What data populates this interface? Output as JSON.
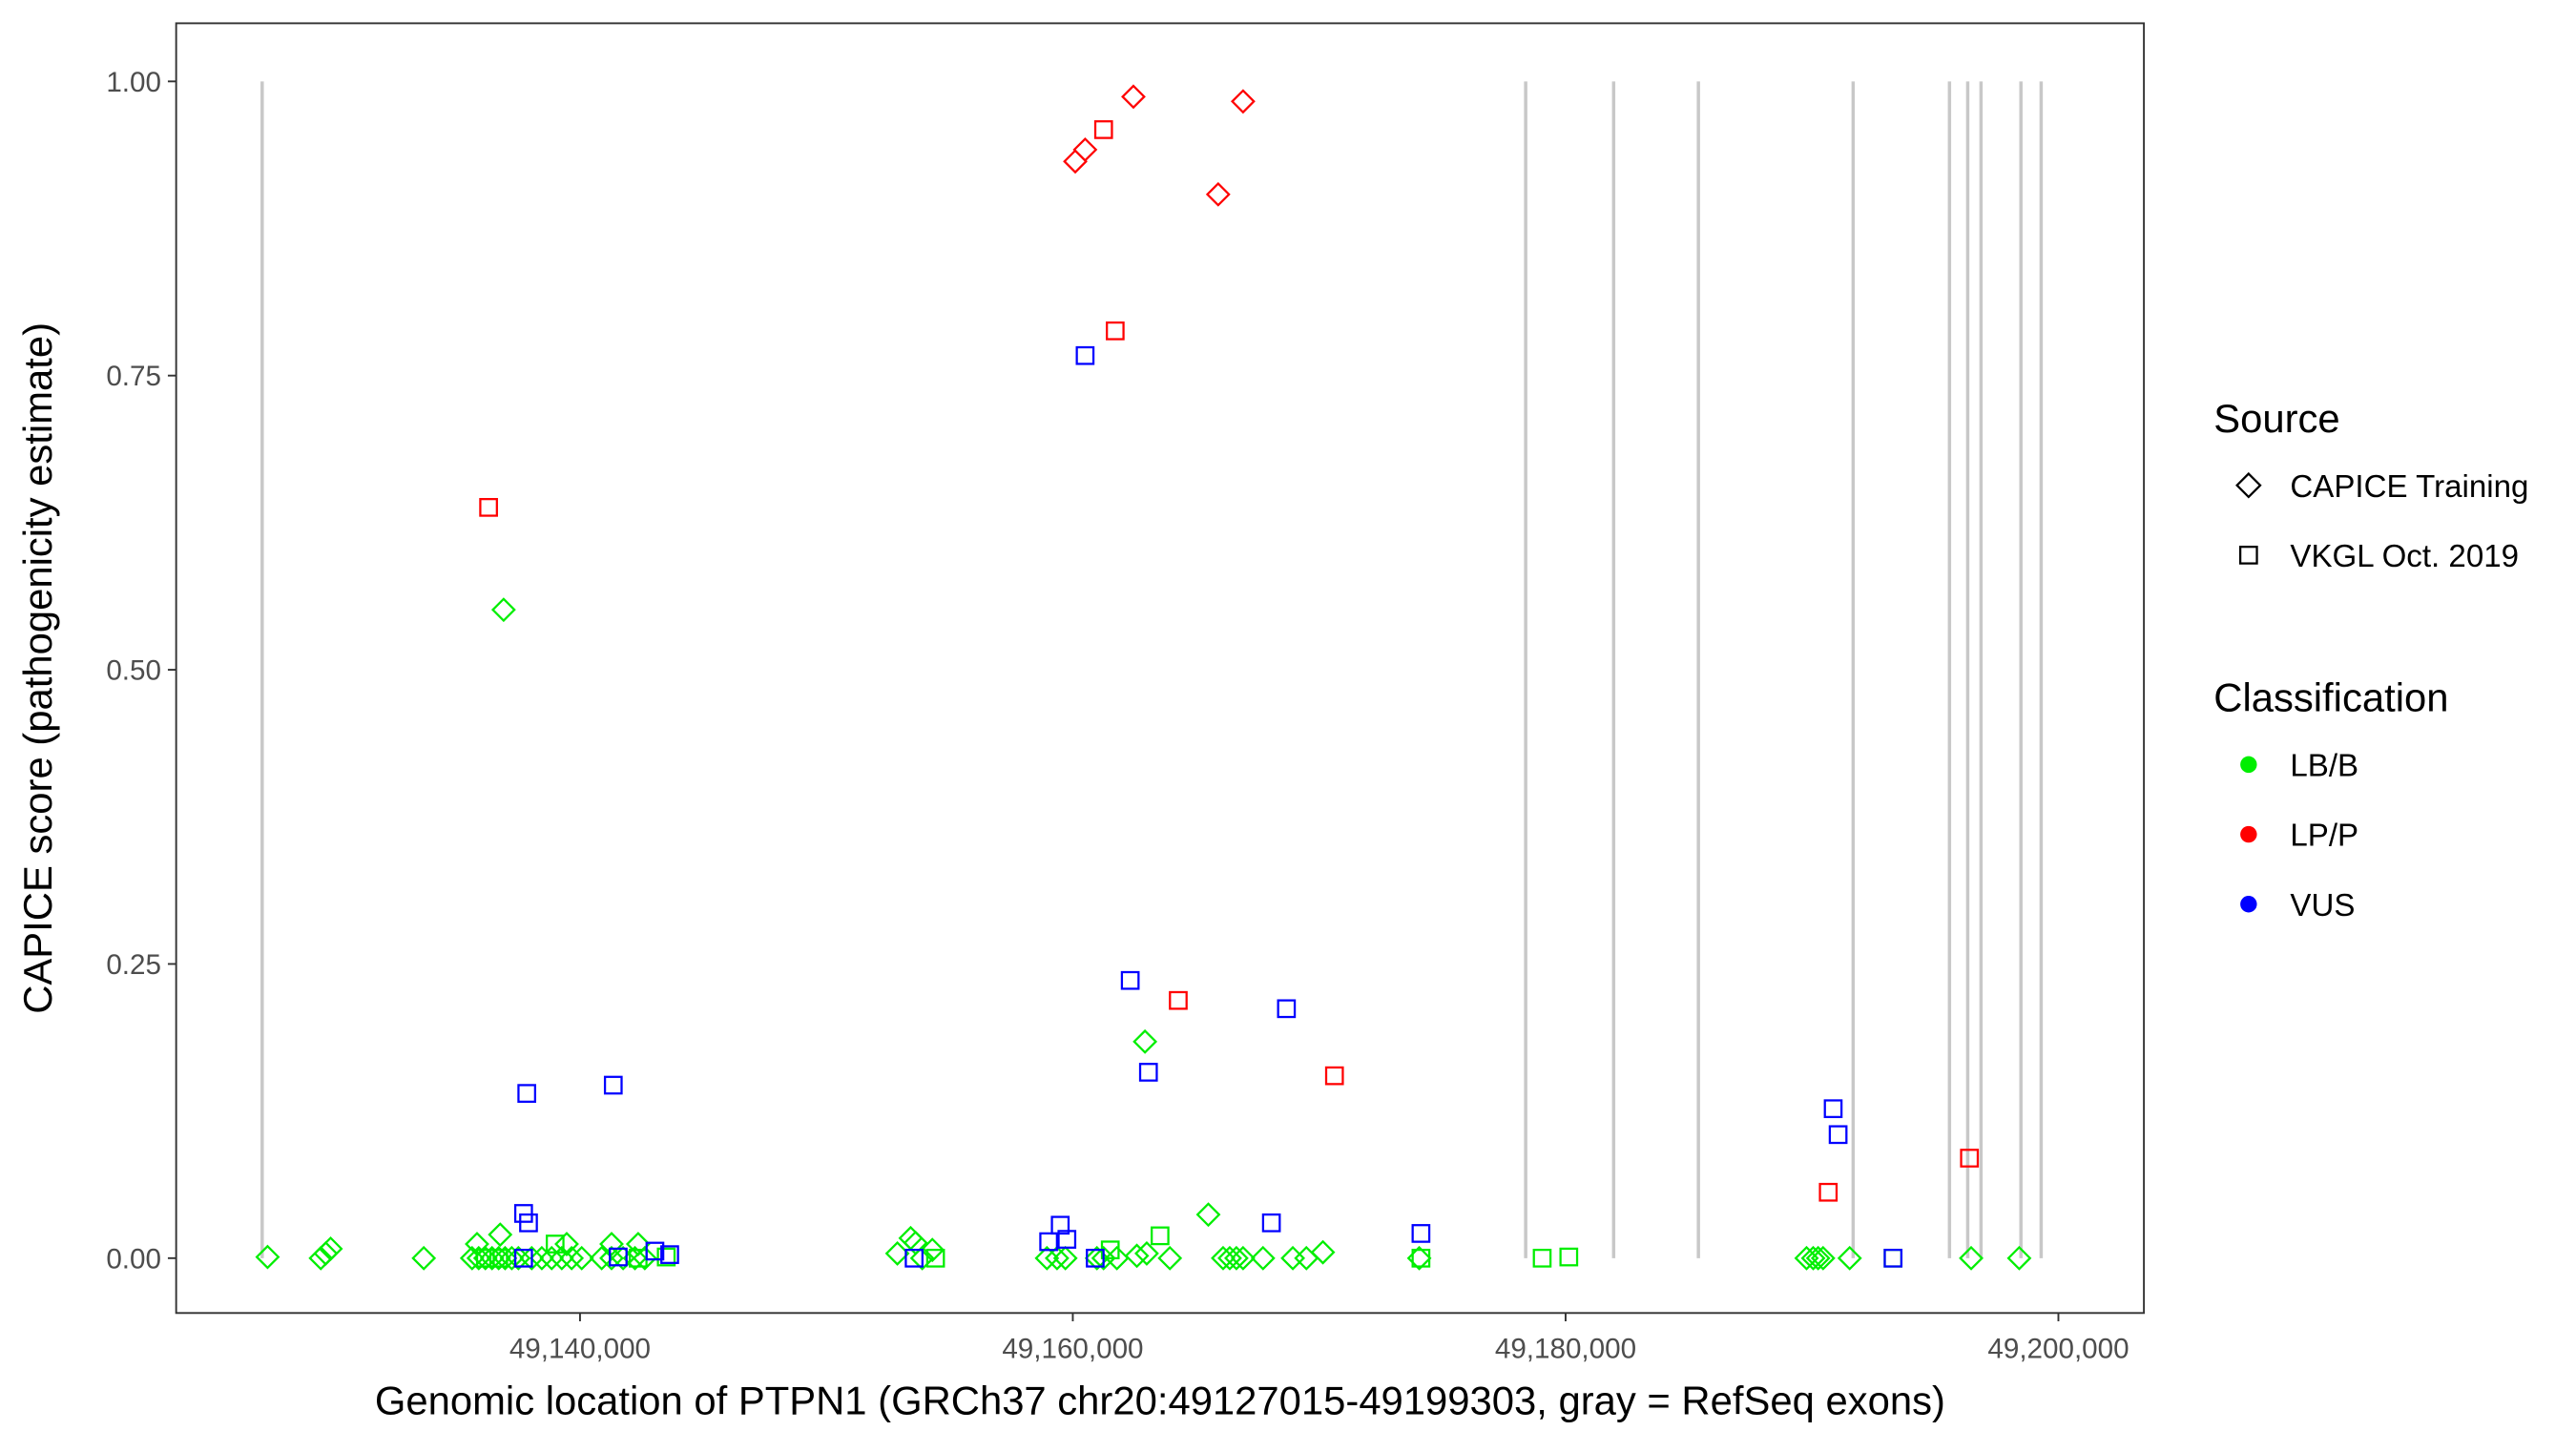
{
  "chart_data": {
    "type": "scatter",
    "xlabel": "Genomic location of PTPN1 (GRCh37 chr20:49127015-49199303, gray = RefSeq exons)",
    "ylabel": "CAPICE score (pathogenicity estimate)",
    "xlim": [
      49123610,
      49203470
    ],
    "ylim": [
      -0.0466,
      1.0494
    ],
    "x_ticks": [
      49140000,
      49160000,
      49180000,
      49200000
    ],
    "x_tick_labels": [
      "49,140,000",
      "49,160,000",
      "49,180,000",
      "49,200,000"
    ],
    "y_ticks": [
      0,
      0.25,
      0.5,
      0.75,
      1.0
    ],
    "y_tick_labels": [
      "0.00",
      "0.25",
      "0.50",
      "0.75",
      "1.00"
    ],
    "grid": false,
    "legend_placement": "right",
    "exon_color": "#c8c8c8",
    "exons": [
      49127100,
      49178380,
      49181950,
      49185390,
      49191670,
      49195580,
      49196320,
      49196860,
      49198480,
      49199300
    ],
    "legend": {
      "source_title": "Source",
      "sources": [
        {
          "label": "CAPICE Training",
          "shape": "diamond"
        },
        {
          "label": "VKGL Oct. 2019",
          "shape": "square"
        }
      ],
      "classification_title": "Classification",
      "classifications": [
        {
          "label": "LB/B",
          "color": "#00ee00"
        },
        {
          "label": "LP/P",
          "color": "#ff0000"
        },
        {
          "label": "VUS",
          "color": "#0000ff"
        }
      ]
    },
    "series": [
      {
        "source": "CAPICE Training",
        "classification": "LB/B",
        "points": [
          [
            49136900,
            0.551
          ],
          [
            49162930,
            0.184
          ],
          [
            49165500,
            0.037
          ],
          [
            49136760,
            0.02
          ],
          [
            49127320,
            0.001
          ],
          [
            49129480,
            0.0
          ],
          [
            49129680,
            0.004
          ],
          [
            49129880,
            0.008
          ],
          [
            49133660,
            0.0
          ],
          [
            49135620,
            0.0
          ],
          [
            49135890,
            0.0
          ],
          [
            49136160,
            0.0
          ],
          [
            49136430,
            0.0
          ],
          [
            49136700,
            0.0
          ],
          [
            49136960,
            0.0
          ],
          [
            49137230,
            0.0
          ],
          [
            49137500,
            0.0
          ],
          [
            49138040,
            0.0
          ],
          [
            49138450,
            0.0
          ],
          [
            49138850,
            0.0
          ],
          [
            49139260,
            0.0
          ],
          [
            49139660,
            0.0
          ],
          [
            49140070,
            0.0
          ],
          [
            49140880,
            0.0
          ],
          [
            49141280,
            0.0
          ],
          [
            49141750,
            0.0
          ],
          [
            49142230,
            0.0
          ],
          [
            49142630,
            0.0
          ],
          [
            49135820,
            0.012
          ],
          [
            49139460,
            0.012
          ],
          [
            49141280,
            0.012
          ],
          [
            49142360,
            0.012
          ],
          [
            49152880,
            0.004
          ],
          [
            49153420,
            0.017
          ],
          [
            49153620,
            0.013
          ],
          [
            49153890,
            0.0
          ],
          [
            49154300,
            0.007
          ],
          [
            49158950,
            0.0
          ],
          [
            49159360,
            0.0
          ],
          [
            49159700,
            0.0
          ],
          [
            49160980,
            0.0
          ],
          [
            49161250,
            0.0
          ],
          [
            49161790,
            0.0
          ],
          [
            49162600,
            0.002
          ],
          [
            49163000,
            0.004
          ],
          [
            49163940,
            0.0
          ],
          [
            49166100,
            0.0
          ],
          [
            49166370,
            0.0
          ],
          [
            49166640,
            0.0
          ],
          [
            49166910,
            0.0
          ],
          [
            49167720,
            0.0
          ],
          [
            49168930,
            0.0
          ],
          [
            49169480,
            0.0
          ],
          [
            49170150,
            0.005
          ],
          [
            49174060,
            0.0
          ],
          [
            49189780,
            0.0
          ],
          [
            49190050,
            0.0
          ],
          [
            49190250,
            0.0
          ],
          [
            49190450,
            0.0
          ],
          [
            49191530,
            0.0
          ],
          [
            49196460,
            0.0
          ],
          [
            49198410,
            0.0
          ]
        ]
      },
      {
        "source": "CAPICE Training",
        "classification": "LP/P",
        "points": [
          [
            49162460,
            0.987
          ],
          [
            49166910,
            0.983
          ],
          [
            49160500,
            0.942
          ],
          [
            49160100,
            0.932
          ],
          [
            49165900,
            0.904
          ]
        ]
      },
      {
        "source": "VKGL Oct. 2019",
        "classification": "LB/B",
        "points": [
          [
            49163540,
            0.019
          ],
          [
            49138990,
            0.012
          ],
          [
            49179050,
            0.0
          ],
          [
            49180130,
            0.001
          ],
          [
            49154430,
            0.0
          ],
          [
            49161520,
            0.007
          ],
          [
            49142360,
            0.0
          ],
          [
            49143500,
            0.001
          ],
          [
            49136160,
            0.0
          ],
          [
            49136700,
            0.0
          ],
          [
            49174130,
            0.0
          ],
          [
            49193290,
            0.0
          ]
        ]
      },
      {
        "source": "VKGL Oct. 2019",
        "classification": "LP/P",
        "points": [
          [
            49161250,
            0.959
          ],
          [
            49161720,
            0.788
          ],
          [
            49136290,
            0.638
          ],
          [
            49164280,
            0.219
          ],
          [
            49170620,
            0.155
          ],
          [
            49190660,
            0.056
          ],
          [
            49196390,
            0.085
          ]
        ]
      },
      {
        "source": "VKGL Oct. 2019",
        "classification": "VUS",
        "points": [
          [
            49160500,
            0.767
          ],
          [
            49162330,
            0.236
          ],
          [
            49168670,
            0.212
          ],
          [
            49163070,
            0.158
          ],
          [
            49137840,
            0.14
          ],
          [
            49141350,
            0.147
          ],
          [
            49190860,
            0.127
          ],
          [
            49191060,
            0.105
          ],
          [
            49137710,
            0.038
          ],
          [
            49137910,
            0.03
          ],
          [
            49168060,
            0.03
          ],
          [
            49174130,
            0.021
          ],
          [
            49159490,
            0.028
          ],
          [
            49159020,
            0.014
          ],
          [
            49159760,
            0.016
          ],
          [
            49137710,
            0.0
          ],
          [
            49141550,
            0.001
          ],
          [
            49143040,
            0.006
          ],
          [
            49143640,
            0.003
          ],
          [
            49153560,
            0.0
          ],
          [
            49160910,
            0.0
          ],
          [
            49193290,
            0.0
          ]
        ]
      }
    ]
  }
}
